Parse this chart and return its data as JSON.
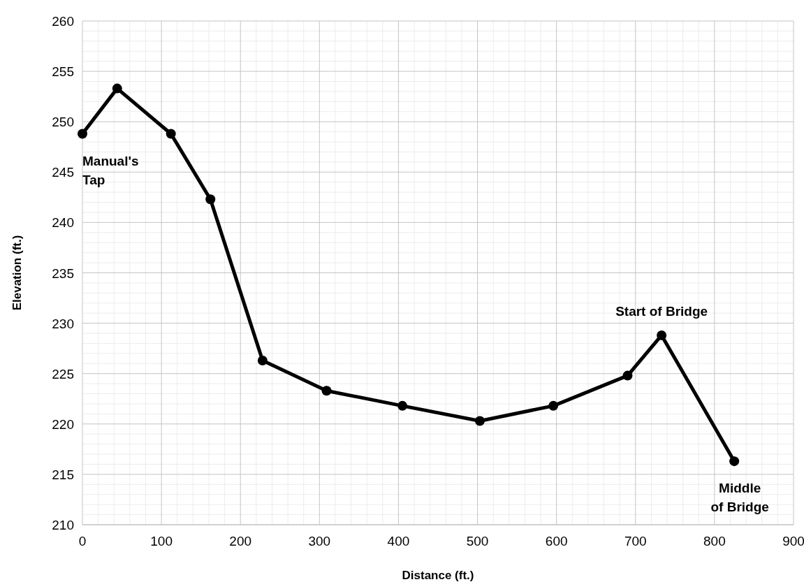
{
  "chart_data": {
    "type": "line",
    "xlabel": "Distance (ft.)",
    "ylabel": "Elevation (ft.)",
    "x": [
      0,
      44,
      112,
      162,
      228,
      309,
      405,
      503,
      596,
      690,
      733,
      825
    ],
    "series": [
      {
        "color": "#000000",
        "values": [
          248.8,
          253.3,
          248.8,
          242.3,
          226.3,
          223.3,
          221.8,
          220.3,
          221.8,
          224.8,
          228.8,
          216.3
        ]
      }
    ],
    "xlim": [
      0,
      900
    ],
    "xticks": [
      0,
      100,
      200,
      300,
      400,
      500,
      600,
      700,
      800,
      900
    ],
    "ylim": [
      210,
      260
    ],
    "yticks": [
      210,
      215,
      220,
      225,
      230,
      235,
      240,
      245,
      250,
      255,
      260
    ],
    "grid": true,
    "marker": "circle",
    "line_style": "solid",
    "annotations": [
      {
        "text": "Manual's\nTap",
        "x": 0,
        "y": 248.8
      },
      {
        "text": "Start of Bridge",
        "x": 733,
        "y": 228.8
      },
      {
        "text": "Middle\nof Bridge",
        "x": 825,
        "y": 216.3
      }
    ]
  }
}
